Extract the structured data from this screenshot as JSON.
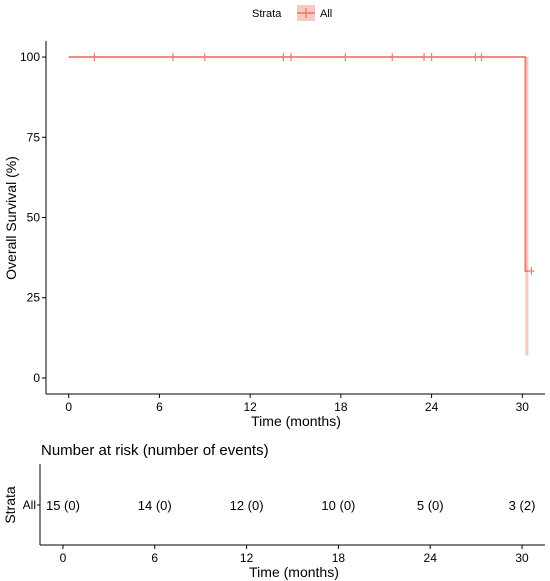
{
  "chart_data": [
    {
      "type": "line",
      "subtype": "kaplan-meier",
      "xlabel": "Time (months)",
      "ylabel": "Overall Survival (%)",
      "xlim": [
        -1.5,
        31.5
      ],
      "ylim": [
        -5,
        105
      ],
      "xticks": [
        "0",
        "6",
        "12",
        "18",
        "24",
        "30"
      ],
      "yticks": [
        "0",
        "25",
        "50",
        "75",
        "100"
      ],
      "grid": false,
      "legend": {
        "title": "Strata",
        "position": "top",
        "entries": [
          "All"
        ]
      },
      "color": "#f07c72",
      "band_color": "#f8c8c3",
      "series": [
        {
          "name": "All",
          "steps": [
            {
              "x": 0,
              "y": 100
            },
            {
              "x": 30.2,
              "y": 100
            },
            {
              "x": 30.2,
              "y": 33.3
            },
            {
              "x": 30.4,
              "y": 33.3
            }
          ],
          "ci_band": [
            {
              "x0": 30.2,
              "x1": 30.4,
              "lower": 7,
              "upper": 100
            }
          ],
          "censor_marks": [
            {
              "x": 1.7,
              "y": 100
            },
            {
              "x": 6.9,
              "y": 100
            },
            {
              "x": 9.0,
              "y": 100
            },
            {
              "x": 14.2,
              "y": 100
            },
            {
              "x": 14.7,
              "y": 100
            },
            {
              "x": 18.3,
              "y": 100
            },
            {
              "x": 21.4,
              "y": 100
            },
            {
              "x": 23.5,
              "y": 100
            },
            {
              "x": 24.0,
              "y": 100
            },
            {
              "x": 26.9,
              "y": 100
            },
            {
              "x": 27.3,
              "y": 100
            },
            {
              "x": 30.6,
              "y": 33.3
            }
          ]
        }
      ]
    },
    {
      "type": "table",
      "title": "Number at risk (number of events)",
      "ylabel": "Strata",
      "xlabel": "Time (months)",
      "xlim": [
        -1.5,
        31.5
      ],
      "xticks": [
        "0",
        "6",
        "12",
        "18",
        "24",
        "30"
      ],
      "rows": [
        {
          "label": "All",
          "cells": [
            {
              "x": 0,
              "text": "15 (0)"
            },
            {
              "x": 6,
              "text": "14 (0)"
            },
            {
              "x": 12,
              "text": "12 (0)"
            },
            {
              "x": 18,
              "text": "10 (0)"
            },
            {
              "x": 24,
              "text": "5 (0)"
            },
            {
              "x": 30,
              "text": "3 (2)"
            }
          ]
        }
      ]
    }
  ]
}
